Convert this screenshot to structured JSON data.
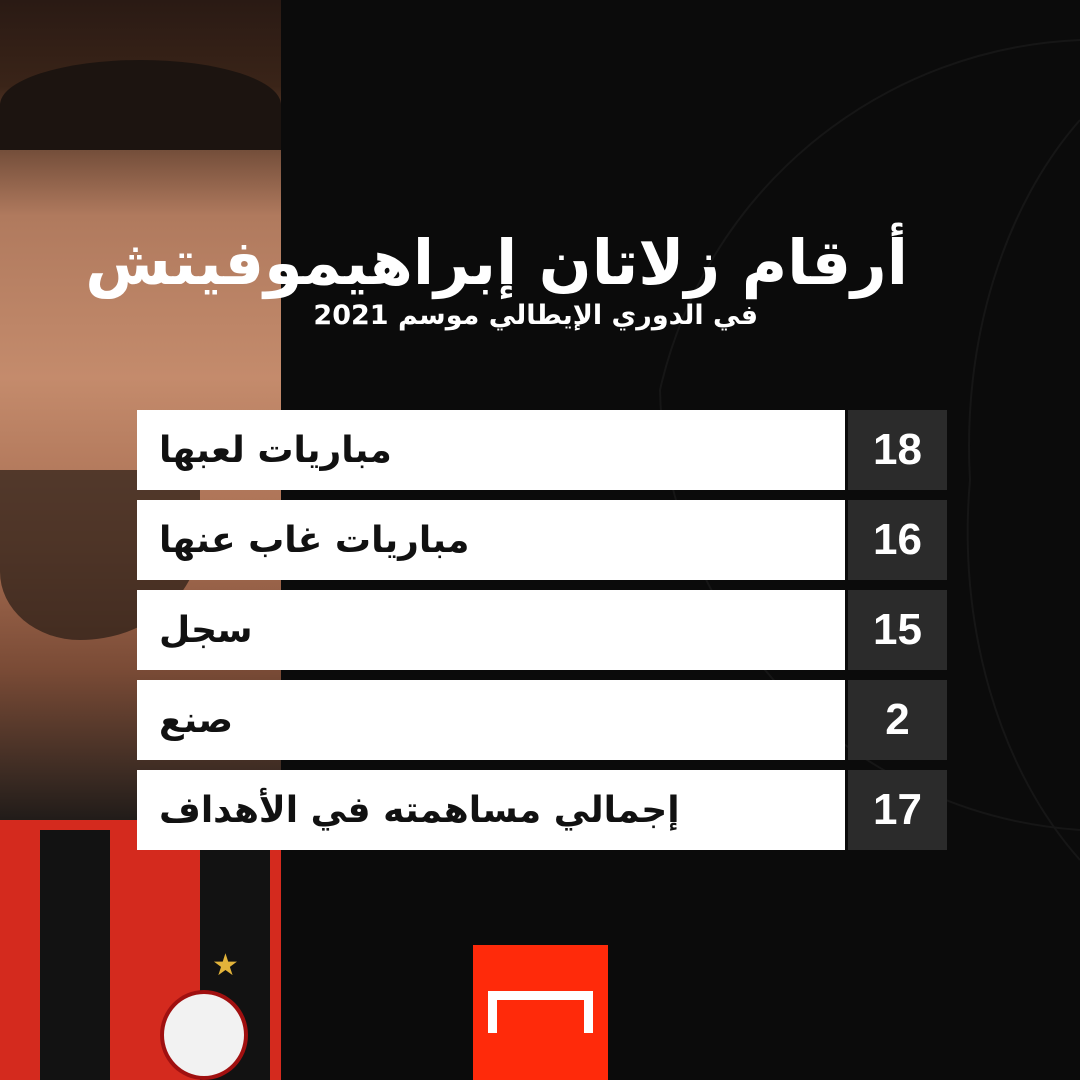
{
  "header": {
    "title": "أرقام زلاتان إبراهيموفيتش",
    "subtitle": "في الدوري الإيطالي موسم 2021"
  },
  "stats": [
    {
      "label": "مباريات لعبها",
      "value": "18"
    },
    {
      "label": "مباريات غاب عنها",
      "value": "16"
    },
    {
      "label": "سجل",
      "value": "15"
    },
    {
      "label": "صنع",
      "value": "2"
    },
    {
      "label": "إجمالي مساهمته في الأهداف",
      "value": "17"
    }
  ],
  "colors": {
    "background": "#0b0b0b",
    "number_box": "#2b2b2b",
    "label_box": "#ffffff",
    "logo": "#ff2a0a"
  },
  "logo": {
    "icon": "goal-icon"
  }
}
